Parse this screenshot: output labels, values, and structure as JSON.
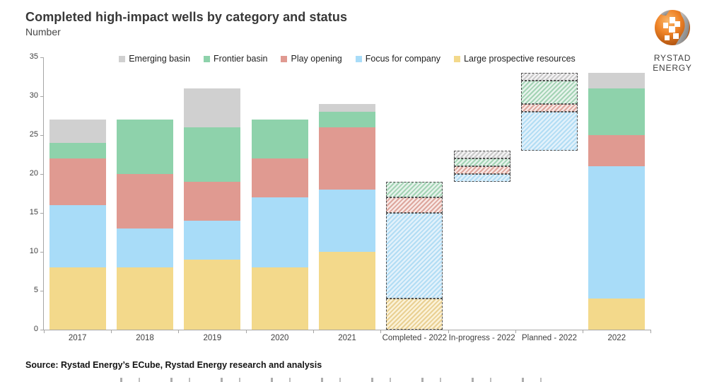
{
  "header": {
    "title": "Completed high-impact wells by category and status",
    "subtitle": "Number"
  },
  "logo": {
    "brand": "RYSTAD ENERGY"
  },
  "footer": {
    "source": "Source: Rystad Energy’s ECube, Rystad Energy research and analysis"
  },
  "chart_data": {
    "type": "bar",
    "stacked": true,
    "title": "Completed high-impact wells by category and status",
    "ylabel": "Number",
    "xlabel": "",
    "grid": false,
    "legend_position": "top",
    "ylim": [
      0,
      35
    ],
    "yticks": [
      0,
      5,
      10,
      15,
      20,
      25,
      30,
      35
    ],
    "legend": [
      "Emerging basin",
      "Frontier basin",
      "Play opening",
      "Focus for company",
      "Large prospective resources"
    ],
    "colors": {
      "Emerging basin": {
        "solid": "#d0d0d0",
        "tint": "#f4f3f4",
        "stripe": "#c9c9c9"
      },
      "Frontier basin": {
        "solid": "#8ed2ab",
        "tint": "#e7f3ec",
        "stripe": "#a3d3b4"
      },
      "Play opening": {
        "solid": "#e09a91",
        "tint": "#f8e8e5",
        "stripe": "#dda69d"
      },
      "Focus for company": {
        "solid": "#a8dcf8",
        "tint": "#e2f1fb",
        "stripe": "#b2ddf4"
      },
      "Large prospective resources": {
        "solid": "#f3d98b",
        "tint": "#fbf2d8",
        "stripe": "#e9d093"
      }
    },
    "bars": [
      {
        "category": "2017",
        "style": "solid",
        "base": 0,
        "total": 27,
        "segments": [
          {
            "name": "Large prospective resources",
            "value": 8
          },
          {
            "name": "Focus for company",
            "value": 8
          },
          {
            "name": "Play opening",
            "value": 6
          },
          {
            "name": "Frontier basin",
            "value": 2
          },
          {
            "name": "Emerging basin",
            "value": 3
          }
        ]
      },
      {
        "category": "2018",
        "style": "solid",
        "base": 0,
        "total": 27,
        "segments": [
          {
            "name": "Large prospective resources",
            "value": 8
          },
          {
            "name": "Focus for company",
            "value": 5
          },
          {
            "name": "Play opening",
            "value": 7
          },
          {
            "name": "Frontier basin",
            "value": 7
          }
        ]
      },
      {
        "category": "2019",
        "style": "solid",
        "base": 0,
        "total": 31,
        "segments": [
          {
            "name": "Large prospective resources",
            "value": 9
          },
          {
            "name": "Focus for company",
            "value": 5
          },
          {
            "name": "Play opening",
            "value": 5
          },
          {
            "name": "Frontier basin",
            "value": 7
          },
          {
            "name": "Emerging basin",
            "value": 5
          }
        ]
      },
      {
        "category": "2020",
        "style": "solid",
        "base": 0,
        "total": 27,
        "segments": [
          {
            "name": "Large prospective resources",
            "value": 8
          },
          {
            "name": "Focus for company",
            "value": 9
          },
          {
            "name": "Play opening",
            "value": 5
          },
          {
            "name": "Frontier basin",
            "value": 5
          }
        ]
      },
      {
        "category": "2021",
        "style": "solid",
        "base": 0,
        "total": 29,
        "segments": [
          {
            "name": "Large prospective resources",
            "value": 10
          },
          {
            "name": "Focus for company",
            "value": 8
          },
          {
            "name": "Play opening",
            "value": 8
          },
          {
            "name": "Frontier basin",
            "value": 2
          },
          {
            "name": "Emerging basin",
            "value": 1
          }
        ]
      },
      {
        "category": "Completed - 2022",
        "style": "hatched",
        "base": 0,
        "total": 19,
        "segments": [
          {
            "name": "Large prospective resources",
            "value": 4
          },
          {
            "name": "Focus for company",
            "value": 11
          },
          {
            "name": "Play opening",
            "value": 2
          },
          {
            "name": "Frontier basin",
            "value": 2
          }
        ]
      },
      {
        "category": "In-progress - 2022",
        "style": "hatched",
        "base": 19,
        "total": 4,
        "segments": [
          {
            "name": "Focus for company",
            "value": 1
          },
          {
            "name": "Play opening",
            "value": 1
          },
          {
            "name": "Frontier basin",
            "value": 1
          },
          {
            "name": "Emerging basin",
            "value": 1
          }
        ]
      },
      {
        "category": "Planned - 2022",
        "style": "hatched",
        "base": 23,
        "total": 10,
        "segments": [
          {
            "name": "Focus for company",
            "value": 5
          },
          {
            "name": "Play opening",
            "value": 1
          },
          {
            "name": "Frontier basin",
            "value": 3
          },
          {
            "name": "Emerging basin",
            "value": 1
          }
        ]
      },
      {
        "category": "2022",
        "style": "solid",
        "base": 0,
        "total": 33,
        "segments": [
          {
            "name": "Large prospective resources",
            "value": 4
          },
          {
            "name": "Focus for company",
            "value": 17
          },
          {
            "name": "Play opening",
            "value": 4
          },
          {
            "name": "Frontier basin",
            "value": 6
          },
          {
            "name": "Emerging basin",
            "value": 2
          }
        ]
      }
    ]
  }
}
